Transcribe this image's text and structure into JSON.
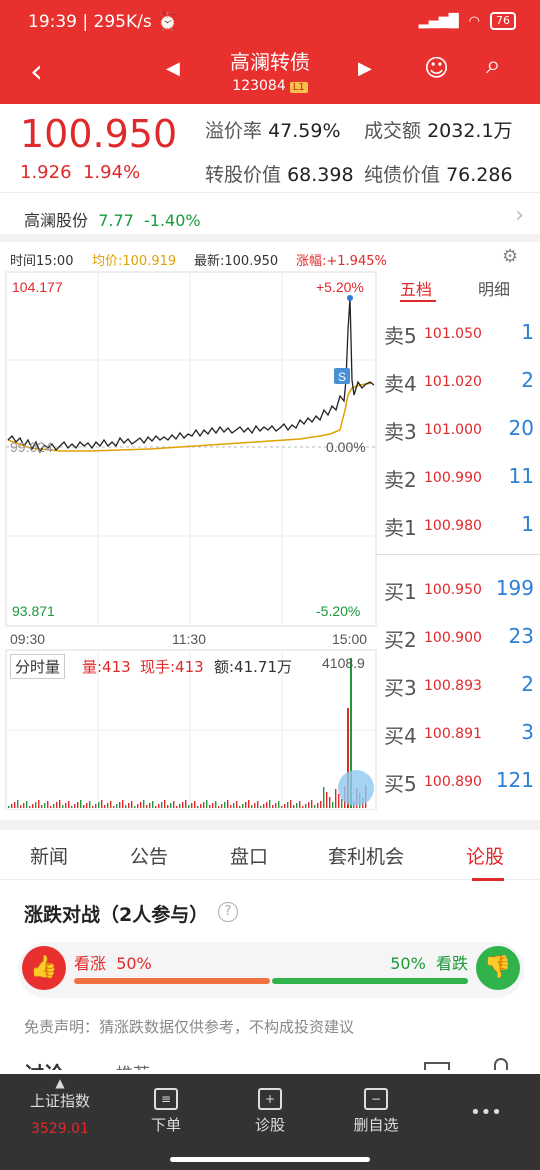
{
  "status_bar": {
    "time": "19:39",
    "speed": "295K/s",
    "battery": "76"
  },
  "header": {
    "title": "高澜转债",
    "code": "123084",
    "tag": "L1"
  },
  "quote": {
    "price": "100.950",
    "change": "1.926",
    "change_pct": "1.94%",
    "premium_label": "溢价率",
    "premium": "47.59%",
    "turnover_label": "成交额",
    "turnover": "2032.1万",
    "conv_value_label": "转股价值",
    "conv_value": "68.398",
    "bond_value_label": "纯债价值",
    "bond_value": "76.286"
  },
  "stock": {
    "name": "高澜股份",
    "price": "7.77",
    "change": "-1.40%"
  },
  "info_bar": {
    "time": "时间15:00",
    "avg": "均价:100.919",
    "latest": "最新:100.950",
    "rise": "涨幅:+1.945%"
  },
  "chart": {
    "top_left": "104.177",
    "top_right": "+5.20%",
    "mid_left": "99.024",
    "mid_right": "0.00%",
    "bottom_left": "93.871",
    "bottom_right": "-5.20%",
    "times": [
      "09:30",
      "11:30",
      "15:00"
    ],
    "vol_tab": "分时量",
    "vol_label": "量:413",
    "hand_label": "现手:413",
    "amount_label": "额:41.71万",
    "vol_max": "4108.9"
  },
  "order_book": {
    "tab_five": "五档",
    "tab_detail": "明细",
    "asks": [
      {
        "label": "卖5",
        "price": "101.050",
        "vol": "1"
      },
      {
        "label": "卖4",
        "price": "101.020",
        "vol": "2"
      },
      {
        "label": "卖3",
        "price": "101.000",
        "vol": "20"
      },
      {
        "label": "卖2",
        "price": "100.990",
        "vol": "11"
      },
      {
        "label": "卖1",
        "price": "100.980",
        "vol": "1"
      }
    ],
    "bids": [
      {
        "label": "买1",
        "price": "100.950",
        "vol": "199"
      },
      {
        "label": "买2",
        "price": "100.900",
        "vol": "23"
      },
      {
        "label": "买3",
        "price": "100.893",
        "vol": "2"
      },
      {
        "label": "买4",
        "price": "100.891",
        "vol": "3"
      },
      {
        "label": "买5",
        "price": "100.890",
        "vol": "121"
      }
    ]
  },
  "tabs": [
    "新闻",
    "公告",
    "盘口",
    "套利机会",
    "论股"
  ],
  "battle": {
    "title": "涨跌对战（2人参与）",
    "bull_label": "看涨",
    "bull_pct": "50%",
    "bear_pct": "50%",
    "bear_label": "看跌",
    "disclaimer": "免责声明：猜涨跌数据仅供参考，不构成投资建议",
    "discuss": "讨论",
    "recommend": "推荐"
  },
  "bottom_nav": {
    "index_name": "上证指数",
    "index_value": "3529.01",
    "order": "下单",
    "diagnose": "诊股",
    "delete_fav": "删自选",
    "more": "•••"
  },
  "colors": {
    "accent": "#e8302f",
    "up": "#e0292b",
    "down": "#1a9a3a",
    "avg_line": "#e0a000"
  }
}
